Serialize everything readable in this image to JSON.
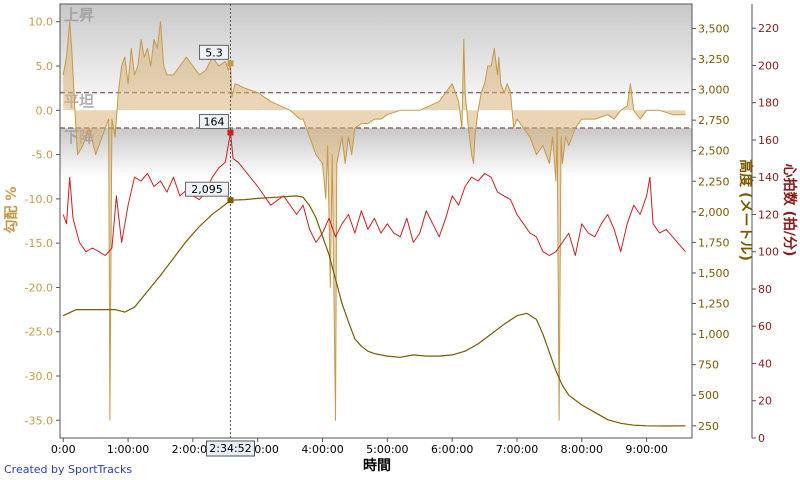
{
  "chart_data": {
    "type": "line",
    "xlabel": "時間",
    "x_ticks": [
      "0:00",
      "1:00:00",
      "2:00:00",
      "3:00:00",
      "4:00:00",
      "5:00:00",
      "6:00:00",
      "7:00:00",
      "8:00:00",
      "9:00:00"
    ],
    "x_range_hours": [
      -0.05,
      9.7
    ],
    "grade_axis": {
      "label": "勾配 %",
      "ticks": [
        "10.0",
        "5.0",
        "0.0",
        "-5.0",
        "-10.0",
        "-15.0",
        "-20.0",
        "-25.0",
        "-30.0",
        "-35.0"
      ],
      "range": [
        -37,
        12
      ]
    },
    "altitude_axis": {
      "label": "高度 (メートル)",
      "ticks": [
        "3,500",
        "3,250",
        "3,000",
        "2,750",
        "2,500",
        "2,250",
        "2,000",
        "1,750",
        "1,500",
        "1,250",
        "1,000",
        "750",
        "500",
        "250"
      ],
      "range": [
        150,
        3700
      ]
    },
    "hr_axis": {
      "label": "心拍数 (拍/分)",
      "ticks": [
        "220",
        "200",
        "180",
        "160",
        "140",
        "120",
        "100",
        "80",
        "60",
        "40",
        "20",
        "0"
      ],
      "range": [
        0,
        233
      ]
    },
    "zones": [
      {
        "label": "上昇",
        "from_grade": 2.0,
        "to_grade": 12
      },
      {
        "label": "平坦",
        "from_grade": -2.0,
        "to_grade": 2.0
      },
      {
        "label": "下降",
        "from_grade": -37,
        "to_grade": -2.0
      }
    ],
    "series": [
      {
        "name": "勾配",
        "axis": "grade",
        "color": "#c49a4a",
        "points": [
          [
            0.0,
            4
          ],
          [
            0.05,
            6
          ],
          [
            0.1,
            10
          ],
          [
            0.13,
            7
          ],
          [
            0.18,
            0
          ],
          [
            0.22,
            -5
          ],
          [
            0.3,
            -4
          ],
          [
            0.4,
            -2
          ],
          [
            0.5,
            -5
          ],
          [
            0.6,
            -3
          ],
          [
            0.7,
            -1
          ],
          [
            0.72,
            -35
          ],
          [
            0.75,
            -1
          ],
          [
            0.8,
            -3
          ],
          [
            0.85,
            2
          ],
          [
            0.9,
            5
          ],
          [
            0.95,
            6
          ],
          [
            1.0,
            3
          ],
          [
            1.05,
            7
          ],
          [
            1.1,
            4
          ],
          [
            1.15,
            5
          ],
          [
            1.2,
            8
          ],
          [
            1.25,
            6
          ],
          [
            1.3,
            7
          ],
          [
            1.35,
            5
          ],
          [
            1.4,
            8
          ],
          [
            1.45,
            7
          ],
          [
            1.5,
            10
          ],
          [
            1.55,
            5
          ],
          [
            1.6,
            4
          ],
          [
            1.7,
            4
          ],
          [
            1.8,
            5
          ],
          [
            1.9,
            6
          ],
          [
            2.0,
            5
          ],
          [
            2.1,
            4
          ],
          [
            2.2,
            4.5
          ],
          [
            2.3,
            6
          ],
          [
            2.4,
            5
          ],
          [
            2.5,
            5.5
          ],
          [
            2.55,
            4.5
          ],
          [
            2.58,
            5.3
          ],
          [
            2.6,
            1.5
          ],
          [
            2.65,
            3
          ],
          [
            2.8,
            2.5
          ],
          [
            3.0,
            2
          ],
          [
            3.2,
            1
          ],
          [
            3.5,
            0
          ],
          [
            3.65,
            -1
          ],
          [
            3.7,
            -1
          ],
          [
            3.75,
            -2
          ],
          [
            3.8,
            -3
          ],
          [
            3.9,
            -5
          ],
          [
            4.0,
            -6
          ],
          [
            4.05,
            -10
          ],
          [
            4.08,
            -4
          ],
          [
            4.12,
            -20
          ],
          [
            4.15,
            -5
          ],
          [
            4.2,
            -35
          ],
          [
            4.22,
            -6
          ],
          [
            4.3,
            -3
          ],
          [
            4.35,
            -6
          ],
          [
            4.4,
            -3
          ],
          [
            4.45,
            -5
          ],
          [
            4.5,
            -2
          ],
          [
            4.6,
            -1.5
          ],
          [
            4.7,
            -1.5
          ],
          [
            4.8,
            -1
          ],
          [
            4.9,
            -1
          ],
          [
            5.0,
            -0.5
          ],
          [
            5.2,
            0
          ],
          [
            5.5,
            0
          ],
          [
            5.8,
            1
          ],
          [
            6.0,
            3
          ],
          [
            6.1,
            1
          ],
          [
            6.15,
            -2
          ],
          [
            6.18,
            8
          ],
          [
            6.2,
            2
          ],
          [
            6.25,
            -2
          ],
          [
            6.3,
            -5
          ],
          [
            6.33,
            -6
          ],
          [
            6.35,
            -3
          ],
          [
            6.4,
            0
          ],
          [
            6.45,
            2
          ],
          [
            6.5,
            3
          ],
          [
            6.55,
            5
          ],
          [
            6.6,
            5
          ],
          [
            6.65,
            7
          ],
          [
            6.7,
            4
          ],
          [
            6.72,
            6
          ],
          [
            6.75,
            3
          ],
          [
            6.8,
            2
          ],
          [
            6.85,
            3
          ],
          [
            6.9,
            2
          ],
          [
            6.95,
            -2
          ],
          [
            7.0,
            -1
          ],
          [
            7.1,
            -2
          ],
          [
            7.2,
            -3
          ],
          [
            7.3,
            -5
          ],
          [
            7.4,
            -4
          ],
          [
            7.5,
            -6
          ],
          [
            7.55,
            -3
          ],
          [
            7.6,
            -8
          ],
          [
            7.62,
            -2
          ],
          [
            7.65,
            -35
          ],
          [
            7.68,
            -3
          ],
          [
            7.7,
            -6
          ],
          [
            7.75,
            -3
          ],
          [
            7.8,
            -4
          ],
          [
            7.9,
            -2
          ],
          [
            8.0,
            -1
          ],
          [
            8.2,
            -1
          ],
          [
            8.4,
            -0.5
          ],
          [
            8.5,
            -1
          ],
          [
            8.6,
            0
          ],
          [
            8.7,
            0.5
          ],
          [
            8.75,
            3
          ],
          [
            8.8,
            0
          ],
          [
            8.9,
            -1
          ],
          [
            9.0,
            0
          ],
          [
            9.2,
            0
          ],
          [
            9.4,
            -0.5
          ],
          [
            9.6,
            -0.5
          ]
        ]
      },
      {
        "name": "高度",
        "axis": "altitude",
        "color": "#7a5a00",
        "points": [
          [
            0.0,
            1150
          ],
          [
            0.2,
            1200
          ],
          [
            0.5,
            1200
          ],
          [
            0.8,
            1200
          ],
          [
            0.95,
            1180
          ],
          [
            1.1,
            1220
          ],
          [
            1.3,
            1350
          ],
          [
            1.5,
            1480
          ],
          [
            1.7,
            1620
          ],
          [
            1.9,
            1760
          ],
          [
            2.1,
            1880
          ],
          [
            2.3,
            1980
          ],
          [
            2.5,
            2060
          ],
          [
            2.58,
            2095
          ],
          [
            2.8,
            2100
          ],
          [
            3.0,
            2110
          ],
          [
            3.3,
            2120
          ],
          [
            3.6,
            2130
          ],
          [
            3.7,
            2120
          ],
          [
            3.8,
            2050
          ],
          [
            3.9,
            1950
          ],
          [
            4.0,
            1800
          ],
          [
            4.1,
            1650
          ],
          [
            4.2,
            1450
          ],
          [
            4.3,
            1250
          ],
          [
            4.4,
            1100
          ],
          [
            4.5,
            960
          ],
          [
            4.6,
            900
          ],
          [
            4.7,
            860
          ],
          [
            4.8,
            840
          ],
          [
            5.0,
            820
          ],
          [
            5.2,
            810
          ],
          [
            5.4,
            830
          ],
          [
            5.6,
            820
          ],
          [
            5.8,
            820
          ],
          [
            6.0,
            830
          ],
          [
            6.2,
            860
          ],
          [
            6.4,
            920
          ],
          [
            6.6,
            1000
          ],
          [
            6.8,
            1080
          ],
          [
            7.0,
            1150
          ],
          [
            7.15,
            1170
          ],
          [
            7.3,
            1120
          ],
          [
            7.4,
            1000
          ],
          [
            7.5,
            850
          ],
          [
            7.6,
            700
          ],
          [
            7.7,
            580
          ],
          [
            7.8,
            500
          ],
          [
            8.0,
            420
          ],
          [
            8.2,
            360
          ],
          [
            8.4,
            300
          ],
          [
            8.6,
            270
          ],
          [
            8.8,
            255
          ],
          [
            9.0,
            250
          ],
          [
            9.3,
            248
          ],
          [
            9.6,
            250
          ]
        ]
      },
      {
        "name": "心拍数",
        "axis": "hr",
        "color": "#cc1f1f",
        "points": [
          [
            0.0,
            120
          ],
          [
            0.05,
            115
          ],
          [
            0.1,
            140
          ],
          [
            0.15,
            118
          ],
          [
            0.25,
            105
          ],
          [
            0.35,
            100
          ],
          [
            0.45,
            102
          ],
          [
            0.55,
            100
          ],
          [
            0.65,
            98
          ],
          [
            0.75,
            102
          ],
          [
            0.82,
            130
          ],
          [
            0.9,
            105
          ],
          [
            1.0,
            125
          ],
          [
            1.1,
            140
          ],
          [
            1.2,
            138
          ],
          [
            1.3,
            142
          ],
          [
            1.4,
            135
          ],
          [
            1.5,
            138
          ],
          [
            1.6,
            132
          ],
          [
            1.7,
            140
          ],
          [
            1.8,
            130
          ],
          [
            1.9,
            133
          ],
          [
            2.0,
            130
          ],
          [
            2.1,
            128
          ],
          [
            2.2,
            132
          ],
          [
            2.3,
            140
          ],
          [
            2.4,
            145
          ],
          [
            2.5,
            148
          ],
          [
            2.58,
            164
          ],
          [
            2.62,
            150
          ],
          [
            2.7,
            148
          ],
          [
            3.0,
            135
          ],
          [
            3.2,
            125
          ],
          [
            3.4,
            130
          ],
          [
            3.6,
            120
          ],
          [
            3.7,
            125
          ],
          [
            3.8,
            112
          ],
          [
            3.9,
            105
          ],
          [
            4.0,
            110
          ],
          [
            4.1,
            118
          ],
          [
            4.2,
            108
          ],
          [
            4.3,
            115
          ],
          [
            4.4,
            120
          ],
          [
            4.5,
            110
          ],
          [
            4.6,
            122
          ],
          [
            4.7,
            112
          ],
          [
            4.8,
            118
          ],
          [
            4.9,
            110
          ],
          [
            5.0,
            115
          ],
          [
            5.1,
            110
          ],
          [
            5.2,
            108
          ],
          [
            5.3,
            118
          ],
          [
            5.4,
            105
          ],
          [
            5.5,
            110
          ],
          [
            5.6,
            122
          ],
          [
            5.7,
            115
          ],
          [
            5.8,
            108
          ],
          [
            5.9,
            118
          ],
          [
            6.0,
            130
          ],
          [
            6.1,
            125
          ],
          [
            6.2,
            135
          ],
          [
            6.3,
            140
          ],
          [
            6.4,
            138
          ],
          [
            6.5,
            142
          ],
          [
            6.6,
            140
          ],
          [
            6.7,
            132
          ],
          [
            6.8,
            130
          ],
          [
            6.9,
            128
          ],
          [
            7.0,
            120
          ],
          [
            7.1,
            115
          ],
          [
            7.2,
            110
          ],
          [
            7.3,
            108
          ],
          [
            7.4,
            100
          ],
          [
            7.5,
            98
          ],
          [
            7.6,
            100
          ],
          [
            7.7,
            105
          ],
          [
            7.8,
            110
          ],
          [
            7.9,
            98
          ],
          [
            8.0,
            115
          ],
          [
            8.1,
            110
          ],
          [
            8.2,
            108
          ],
          [
            8.3,
            115
          ],
          [
            8.4,
            120
          ],
          [
            8.5,
            112
          ],
          [
            8.6,
            100
          ],
          [
            8.7,
            115
          ],
          [
            8.8,
            125
          ],
          [
            8.9,
            120
          ],
          [
            9.0,
            130
          ],
          [
            9.05,
            140
          ],
          [
            9.1,
            115
          ],
          [
            9.2,
            110
          ],
          [
            9.3,
            112
          ],
          [
            9.4,
            108
          ],
          [
            9.5,
            104
          ],
          [
            9.6,
            100
          ]
        ]
      }
    ],
    "markers": [
      {
        "series": "勾配",
        "x": 2.58,
        "value": 5.3,
        "label": "5.3"
      },
      {
        "series": "心拍数",
        "x": 2.58,
        "value": 164,
        "label": "164"
      },
      {
        "series": "高度",
        "x": 2.58,
        "value": 2095,
        "label": "2,095"
      }
    ],
    "cursor": {
      "x": 2.58,
      "label": "2:34:52"
    }
  },
  "credit": "Created by SportTracks",
  "colors": {
    "grade": "#c49a4a",
    "altitude": "#7a5a00",
    "hr": "#cc1f1f",
    "zone_line": "#8b6b6b",
    "label_text": "#c49a4a",
    "hr_label": "#8a1a1a"
  }
}
